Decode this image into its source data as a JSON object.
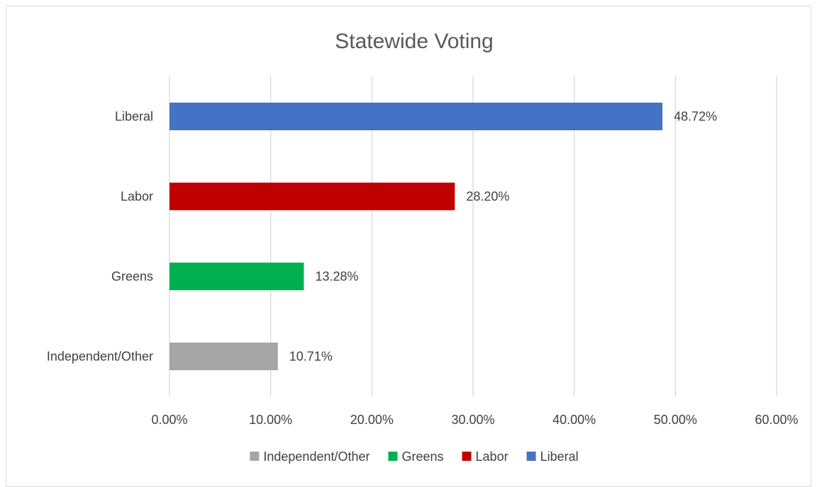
{
  "chart_data": {
    "type": "bar",
    "orientation": "horizontal",
    "title": "Statewide Voting",
    "categories": [
      "Liberal",
      "Labor",
      "Greens",
      "Independent/Other"
    ],
    "values": [
      48.72,
      28.2,
      13.28,
      10.71
    ],
    "data_labels": [
      "48.72%",
      "28.20%",
      "13.28%",
      "10.71%"
    ],
    "colors": [
      "#4472C4",
      "#C00000",
      "#00B050",
      "#A5A5A5"
    ],
    "x_ticks": [
      "0.00%",
      "10.00%",
      "20.00%",
      "30.00%",
      "40.00%",
      "50.00%",
      "60.00%"
    ],
    "xlim": [
      0,
      60
    ],
    "grid": true,
    "legend_position": "bottom",
    "legend": [
      {
        "name": "Independent/Other",
        "color": "#A5A5A5"
      },
      {
        "name": "Greens",
        "color": "#00B050"
      },
      {
        "name": "Labor",
        "color": "#C00000"
      },
      {
        "name": "Liberal",
        "color": "#4472C4"
      }
    ]
  }
}
